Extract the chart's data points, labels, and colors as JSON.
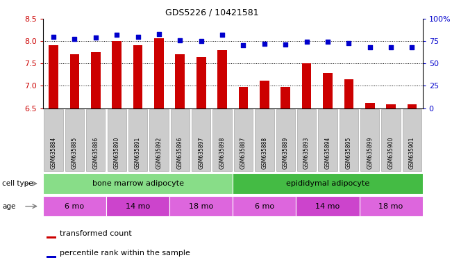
{
  "title": "GDS5226 / 10421581",
  "samples": [
    "GSM635884",
    "GSM635885",
    "GSM635886",
    "GSM635890",
    "GSM635891",
    "GSM635892",
    "GSM635896",
    "GSM635897",
    "GSM635898",
    "GSM635887",
    "GSM635888",
    "GSM635889",
    "GSM635893",
    "GSM635894",
    "GSM635895",
    "GSM635899",
    "GSM635900",
    "GSM635901"
  ],
  "bar_values": [
    7.9,
    7.7,
    7.75,
    8.0,
    7.9,
    8.07,
    7.7,
    7.65,
    7.8,
    6.98,
    7.12,
    6.98,
    7.5,
    7.28,
    7.15,
    6.62,
    6.58,
    6.58
  ],
  "percentile_values": [
    80,
    77,
    79,
    82,
    80,
    83,
    76,
    75,
    82,
    70,
    72,
    71,
    74,
    74,
    73,
    68,
    68,
    68
  ],
  "ylim_left": [
    6.5,
    8.5
  ],
  "ylim_right": [
    0,
    100
  ],
  "yticks_left": [
    6.5,
    7.0,
    7.5,
    8.0,
    8.5
  ],
  "yticks_right": [
    0,
    25,
    50,
    75,
    100
  ],
  "ytick_labels_right": [
    "0",
    "25",
    "50",
    "75",
    "100%"
  ],
  "bar_color": "#cc0000",
  "percentile_color": "#0000cc",
  "bar_bottom": 6.5,
  "cell_type_groups": [
    {
      "label": "bone marrow adipocyte",
      "start": 0,
      "end": 9,
      "color": "#88dd88"
    },
    {
      "label": "epididymal adipocyte",
      "start": 9,
      "end": 18,
      "color": "#44bb44"
    }
  ],
  "age_groups": [
    {
      "label": "6 mo",
      "start": 0,
      "end": 3,
      "color": "#dd66dd"
    },
    {
      "label": "14 mo",
      "start": 3,
      "end": 6,
      "color": "#cc44cc"
    },
    {
      "label": "18 mo",
      "start": 6,
      "end": 9,
      "color": "#dd66dd"
    },
    {
      "label": "6 mo",
      "start": 9,
      "end": 12,
      "color": "#dd66dd"
    },
    {
      "label": "14 mo",
      "start": 12,
      "end": 15,
      "color": "#cc44cc"
    },
    {
      "label": "18 mo",
      "start": 15,
      "end": 18,
      "color": "#dd66dd"
    }
  ],
  "cell_type_label": "cell type",
  "age_label": "age",
  "legend_bar_label": "transformed count",
  "legend_pct_label": "percentile rank within the sample",
  "grid_dotted_values": [
    7.0,
    7.5,
    8.0
  ],
  "sample_box_color": "#cccccc",
  "sample_box_edge": "#999999"
}
